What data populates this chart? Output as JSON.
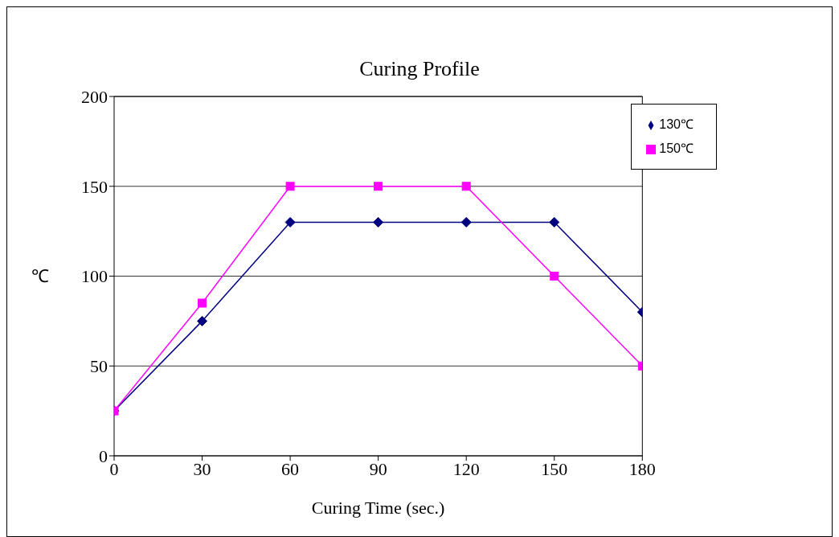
{
  "chart_data": {
    "type": "line",
    "title": "Curing Profile",
    "xlabel": "Curing Time (sec.)",
    "ylabel": "℃",
    "x": [
      0,
      30,
      60,
      90,
      120,
      150,
      180
    ],
    "series": [
      {
        "name": "130℃",
        "color": "#000080",
        "marker": "diamond",
        "values": [
          25,
          75,
          130,
          130,
          130,
          130,
          80
        ]
      },
      {
        "name": "150℃",
        "color": "#ff00ff",
        "marker": "square",
        "values": [
          25,
          85,
          150,
          150,
          150,
          100,
          50
        ]
      }
    ],
    "xlim": [
      0,
      180
    ],
    "xticks": [
      0,
      30,
      60,
      90,
      120,
      150,
      180
    ],
    "ylim": [
      0,
      200
    ],
    "yticks": [
      0,
      50,
      100,
      150,
      200
    ],
    "grid": "y",
    "legend": "top right"
  }
}
